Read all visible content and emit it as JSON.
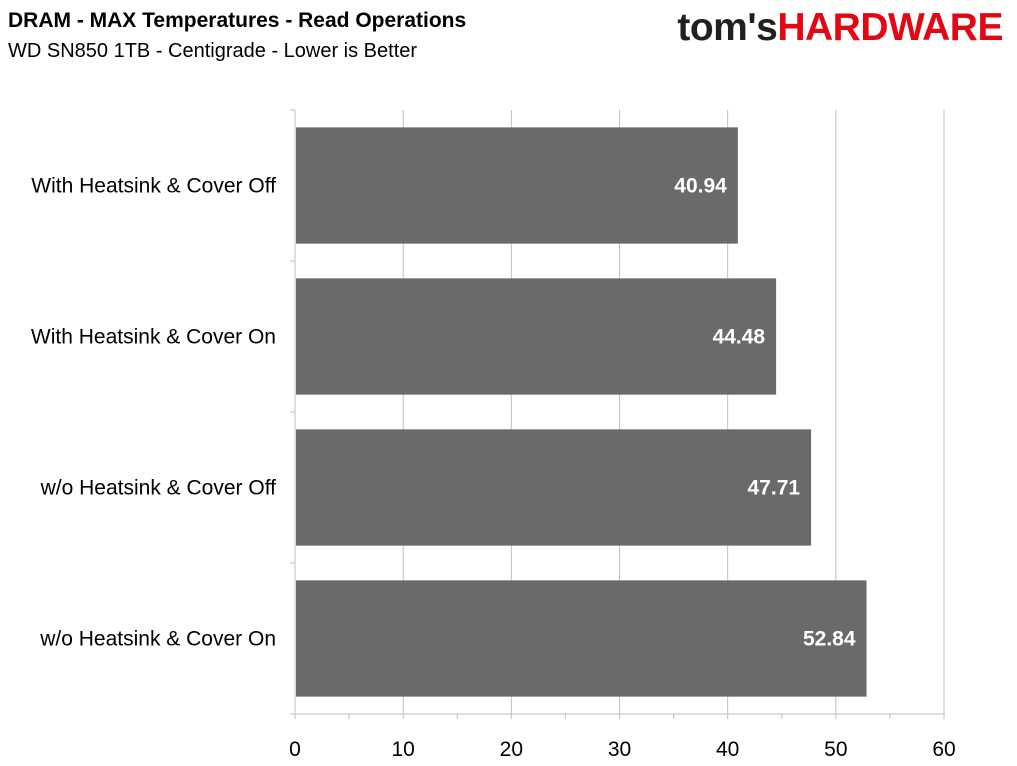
{
  "header": {
    "title": "DRAM - MAX Temperatures - Read Operations",
    "subtitle": "WD SN850 1TB - Centigrade - Lower is Better",
    "logo_part1": "tom's",
    "logo_part2": "HARDWARE"
  },
  "colors": {
    "bar": "#6b6969",
    "grid": "#bfbfbf",
    "axis": "#bfbfbf",
    "brand_red": "#e30613"
  },
  "chart_data": {
    "type": "bar",
    "orientation": "horizontal",
    "title": "DRAM - MAX Temperatures - Read Operations",
    "subtitle": "WD SN850 1TB - Centigrade - Lower is Better",
    "categories": [
      "With Heatsink & Cover Off",
      "With Heatsink & Cover On",
      "w/o Heatsink & Cover Off",
      "w/o Heatsink & Cover On"
    ],
    "values": [
      40.94,
      44.48,
      47.71,
      52.84
    ],
    "value_labels": [
      "40.94",
      "44.48",
      "47.71",
      "52.84"
    ],
    "xlim": [
      0,
      60
    ],
    "xticks": [
      0,
      10,
      20,
      30,
      40,
      50,
      60
    ],
    "xtick_labels": [
      "0",
      "10",
      "20",
      "30",
      "40",
      "50",
      "60"
    ],
    "grid": true,
    "legend": "none"
  }
}
